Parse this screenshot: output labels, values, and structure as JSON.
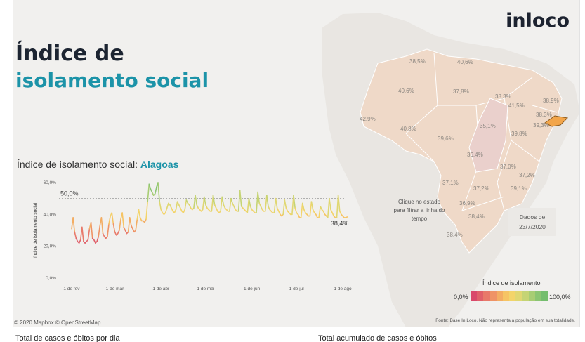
{
  "brand": {
    "logo_text": "inloco"
  },
  "title": {
    "line1": "Índice de",
    "line2": "isolamento social"
  },
  "chart_heading": {
    "prefix": "Índice de isolamento social:",
    "state": "Alagoas"
  },
  "map": {
    "hint": "Clique no estado para filtrar a linha do tempo",
    "date_label": "Dados de",
    "date_value": "23/7/2020",
    "attribution": "© 2020 Mapbox  © OpenStreetMap",
    "source_note": "Fonte: Base In Loco. Não representa a população em sua totalidade.",
    "state_values": [
      "38,5%",
      "40,6%",
      "40,6%",
      "37,8%",
      "38,3%",
      "38,9%",
      "41,5%",
      "38,3%",
      "39,3%",
      "42,9%",
      "40,8%",
      "35,1%",
      "39,6%",
      "39,8%",
      "36,4%",
      "37,0%",
      "37,2%",
      "37,1%",
      "37,2%",
      "39,1%",
      "36,9%",
      "38,4%",
      "38,4%"
    ],
    "colors": {
      "land": "#efd9c8",
      "land_dark": "#eed6cf",
      "outside": "#f1f0ee",
      "border": "#ffffff",
      "highlight": "#f2a54a"
    }
  },
  "legend": {
    "title": "Índice de isolamento",
    "min": "0,0%",
    "max": "100,0%",
    "colors": [
      "#d9486b",
      "#e0606a",
      "#e8796a",
      "#ef9366",
      "#f3ad63",
      "#f6c464",
      "#f3d46a",
      "#e0d771",
      "#c5d474",
      "#a8cd74",
      "#8bc572",
      "#74bd6e"
    ]
  },
  "chart_data": {
    "type": "line",
    "title": "Índice de isolamento social: Alagoas",
    "ylabel": "índice de isolamento social",
    "xlabel": "",
    "ylim": [
      0,
      60
    ],
    "yticks": [
      "0,0%",
      "20,0%",
      "40,0%",
      "60,0%"
    ],
    "ytick_values": [
      0,
      20,
      40,
      60
    ],
    "xticks": [
      "1 de fev",
      "1 de mar",
      "1 de abr",
      "1 de mai",
      "1 de jun",
      "1 de jul",
      "1 de ago"
    ],
    "xtick_days": [
      "2020-02-01",
      "2020-03-01",
      "2020-04-01",
      "2020-05-01",
      "2020-06-01",
      "2020-07-01",
      "2020-08-01"
    ],
    "reference_line": {
      "value": 50,
      "label": "50,0%"
    },
    "last_label": "38,4%",
    "series": [
      {
        "start_date": "2020-02-01",
        "values": [
          31,
          38,
          29,
          25,
          23,
          22,
          24,
          32,
          23,
          22,
          23,
          24,
          31,
          35,
          25,
          24,
          22,
          23,
          26,
          33,
          38,
          28,
          26,
          25,
          26,
          34,
          39,
          41,
          34,
          29,
          27,
          28,
          30,
          37,
          41,
          32,
          30,
          28,
          29,
          38,
          33,
          31,
          29,
          30,
          37,
          43,
          38,
          36,
          36,
          35,
          37,
          48,
          59,
          56,
          54,
          52,
          53,
          57,
          60,
          48,
          43,
          41,
          40,
          41,
          44,
          47,
          46,
          44,
          42,
          41,
          43,
          48,
          46,
          44,
          42,
          41,
          43,
          49,
          47,
          46,
          44,
          43,
          44,
          52,
          46,
          44,
          43,
          42,
          43,
          51,
          46,
          44,
          43,
          42,
          42,
          52,
          46,
          44,
          42,
          41,
          42,
          51,
          46,
          44,
          43,
          42,
          42,
          50,
          47,
          45,
          43,
          42,
          42,
          55,
          45,
          44,
          43,
          42,
          41,
          50,
          45,
          43,
          42,
          41,
          41,
          54,
          47,
          45,
          43,
          42,
          42,
          52,
          45,
          43,
          42,
          41,
          41,
          50,
          44,
          42,
          40,
          39,
          40,
          49,
          44,
          42,
          41,
          40,
          40,
          52,
          44,
          41,
          40,
          38,
          38,
          47,
          43,
          41,
          40,
          39,
          39,
          48,
          43,
          41,
          40,
          38,
          38,
          45,
          43,
          42,
          40,
          39,
          38,
          50,
          43,
          41,
          39,
          38,
          38,
          52,
          42,
          40,
          39,
          38,
          38,
          38.4
        ]
      }
    ]
  },
  "bottom": {
    "left_title": "Total de casos e óbitos por dia",
    "right_title": "Total acumulado de casos e óbitos"
  }
}
